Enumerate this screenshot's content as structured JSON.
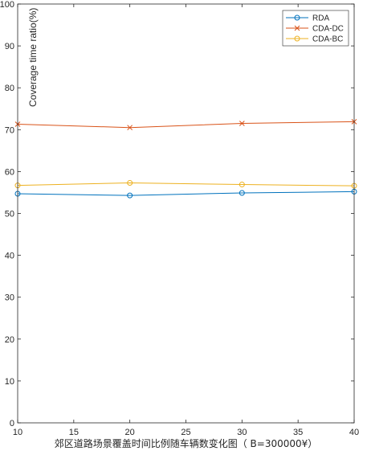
{
  "chart_data": {
    "type": "line",
    "title": "",
    "xlabel": "郊区道路场景覆盖时间比例随车辆数变化图（ B=300000¥）",
    "ylabel": "Coverage time ratio(%)",
    "xlim": [
      10,
      40
    ],
    "ylim": [
      0,
      100
    ],
    "xticks": [
      10,
      15,
      20,
      25,
      30,
      35,
      40
    ],
    "yticks": [
      0,
      10,
      20,
      30,
      40,
      50,
      60,
      70,
      80,
      90,
      100
    ],
    "grid": false,
    "legend_position": "top-right",
    "x": [
      10,
      20,
      30,
      40
    ],
    "series": [
      {
        "name": "RDA",
        "values": [
          54.7,
          54.3,
          54.9,
          55.2
        ],
        "color": "#0072BD",
        "marker": "circle"
      },
      {
        "name": "CDA-DC",
        "values": [
          71.3,
          70.5,
          71.5,
          71.9
        ],
        "color": "#D95319",
        "marker": "x"
      },
      {
        "name": "CDA-BC",
        "values": [
          56.7,
          57.3,
          56.9,
          56.6
        ],
        "color": "#EDB120",
        "marker": "circle"
      }
    ]
  }
}
